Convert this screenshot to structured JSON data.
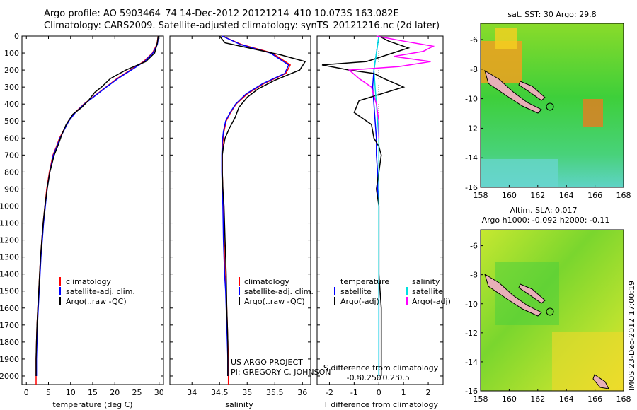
{
  "header": {
    "title_line1": "Argo profile: AO 5903464_74 14-Dec-2012 20121214_410 10.073S 163.082E",
    "title_line2": "Climatology: CARS2009. Satellite-adjusted climatology: synTS_20121216.nc (2d later)"
  },
  "credits": {
    "project": "US ARGO PROJECT",
    "pi": "PI: GREGORY C. JOHNSON",
    "stamp": "IMOS 23-Dec-2012 17:00:19"
  },
  "colors": {
    "climatology": "#ff0000",
    "satellite": "#0000ff",
    "argo": "#000000",
    "sat_salinity": "#00e0e0",
    "argo_salinity": "#ff00ff"
  },
  "chart_data": [
    {
      "id": "temperature",
      "type": "line",
      "xlabel": "temperature (deg C)",
      "xlim": [
        -1,
        31
      ],
      "xticks": [
        0,
        5,
        10,
        15,
        20,
        25,
        30
      ],
      "ylim": [
        2050,
        0
      ],
      "yticks": [
        0,
        100,
        200,
        300,
        400,
        500,
        600,
        700,
        800,
        900,
        1000,
        1100,
        1200,
        1300,
        1400,
        1500,
        1600,
        1700,
        1800,
        1900,
        2000
      ],
      "legend": [
        "climatology",
        "satellite-adj. clim.",
        "Argo(..raw -QC)"
      ],
      "series": [
        {
          "name": "climatology",
          "color": "#ff0000",
          "x": [
            29.8,
            29.5,
            28.5,
            26.5,
            23.5,
            20.5,
            18.0,
            15.5,
            13.0,
            11.0,
            9.5,
            8.5,
            7.5,
            6.8,
            6.0,
            5.2,
            4.6,
            4.2,
            3.8,
            3.5,
            3.2,
            3.0,
            2.8,
            2.6,
            2.4,
            2.3,
            2.2,
            2.2
          ],
          "y": [
            0,
            50,
            100,
            150,
            200,
            250,
            300,
            350,
            400,
            450,
            500,
            550,
            600,
            650,
            700,
            800,
            900,
            1000,
            1100,
            1200,
            1300,
            1400,
            1500,
            1600,
            1700,
            1800,
            1900,
            2050
          ]
        },
        {
          "name": "satellite-adj. clim.",
          "color": "#0000ff",
          "x": [
            29.9,
            29.6,
            28.6,
            26.7,
            23.7,
            20.7,
            18.1,
            15.6,
            13.1,
            11.1,
            9.6,
            8.6,
            7.6,
            6.9,
            6.1,
            5.3,
            4.7,
            4.3,
            3.9,
            3.6,
            3.3,
            3.1,
            2.9,
            2.7,
            2.5,
            2.4,
            2.3,
            2.3
          ],
          "y": [
            0,
            50,
            100,
            150,
            200,
            250,
            300,
            350,
            400,
            450,
            500,
            550,
            600,
            650,
            700,
            800,
            900,
            1000,
            1100,
            1200,
            1300,
            1400,
            1500,
            1600,
            1700,
            1800,
            1900,
            2000
          ]
        },
        {
          "name": "Argo(..raw -QC)",
          "color": "#000000",
          "x": [
            29.8,
            29.6,
            29.0,
            27.0,
            22.5,
            19.0,
            17.0,
            15.5,
            14.0,
            12.5,
            10.5,
            9.0,
            8.0,
            7.2,
            6.3,
            5.3,
            4.7,
            4.2,
            3.8,
            3.5,
            3.2,
            3.0,
            2.8,
            2.6,
            2.4,
            2.3,
            2.2,
            2.2
          ],
          "y": [
            0,
            40,
            100,
            150,
            200,
            250,
            300,
            330,
            380,
            420,
            460,
            520,
            580,
            640,
            700,
            800,
            900,
            1000,
            1100,
            1200,
            1300,
            1400,
            1500,
            1600,
            1700,
            1800,
            1900,
            2000
          ]
        }
      ]
    },
    {
      "id": "salinity",
      "type": "line",
      "xlabel": "salinity",
      "xlim": [
        33.6,
        36.15
      ],
      "xticks": [
        34,
        34.5,
        35,
        35.5,
        36
      ],
      "xticklabels": [
        "34",
        "34.5",
        "35",
        "35.5",
        "36"
      ],
      "ylim": [
        2050,
        0
      ],
      "legend": [
        "climatology",
        "satellite-adj. clim.",
        "Argo(..raw -QC)"
      ],
      "series": [
        {
          "name": "climatology",
          "color": "#ff0000",
          "x": [
            34.55,
            34.9,
            35.45,
            35.78,
            35.7,
            35.3,
            35.0,
            34.8,
            34.7,
            34.62,
            34.58,
            34.56,
            34.55,
            34.55,
            34.56,
            34.57,
            34.58,
            34.6,
            34.62,
            34.63,
            34.64,
            34.65,
            34.66,
            34.66
          ],
          "y": [
            0,
            50,
            100,
            170,
            220,
            280,
            340,
            400,
            450,
            500,
            560,
            620,
            700,
            800,
            900,
            1000,
            1200,
            1400,
            1500,
            1600,
            1700,
            1800,
            1900,
            2050
          ]
        },
        {
          "name": "satellite-adj. clim.",
          "color": "#0000ff",
          "x": [
            34.55,
            34.88,
            35.42,
            35.75,
            35.68,
            35.28,
            34.98,
            34.79,
            34.69,
            34.61,
            34.57,
            34.55,
            34.54,
            34.54,
            34.55,
            34.56,
            34.57,
            34.59,
            34.61,
            34.62,
            34.63,
            34.64,
            34.65,
            34.65
          ],
          "y": [
            0,
            50,
            100,
            170,
            220,
            280,
            340,
            400,
            450,
            500,
            560,
            620,
            700,
            800,
            900,
            1000,
            1200,
            1400,
            1500,
            1600,
            1700,
            1800,
            1900,
            2000
          ]
        },
        {
          "name": "Argo(..raw -QC)",
          "color": "#000000",
          "x": [
            34.5,
            34.6,
            35.6,
            36.05,
            35.95,
            35.5,
            35.2,
            35.0,
            34.85,
            34.78,
            34.68,
            34.6,
            34.57,
            34.55,
            34.55,
            34.56,
            34.58,
            34.6,
            34.62,
            34.63,
            34.64,
            34.65,
            34.65
          ],
          "y": [
            0,
            40,
            110,
            150,
            200,
            260,
            310,
            360,
            420,
            480,
            540,
            600,
            650,
            700,
            800,
            900,
            1000,
            1200,
            1400,
            1600,
            1700,
            1800,
            2000
          ]
        }
      ]
    },
    {
      "id": "differences",
      "type": "line",
      "xlabel": "T difference from climatology",
      "xlabel_top": "S difference from climatology",
      "xlim": [
        -2.5,
        2.6
      ],
      "xticks": [
        -2,
        -1,
        0,
        1,
        2
      ],
      "top_ticks": [
        -0.5,
        -0.25,
        0,
        0.25,
        0.5
      ],
      "top_ticklabels": [
        "-0.5",
        "-0.25",
        "0",
        "0.25",
        "0.5"
      ],
      "ylim": [
        2050,
        0
      ],
      "legend_temperature": {
        "heading": "temperature",
        "items": [
          "satellite",
          "Argo(-adj)"
        ]
      },
      "legend_salinity": {
        "heading": "salinity",
        "items": [
          "satellite",
          "Argo(-adj)"
        ]
      },
      "series": [
        {
          "name": "T satellite",
          "color": "#0000ff",
          "x": [
            0,
            -0.1,
            -0.2,
            -0.25,
            -0.2,
            -0.15,
            -0.1,
            -0.1,
            -0.05,
            -0.05,
            0,
            0,
            0,
            0,
            0,
            0
          ],
          "y": [
            0,
            100,
            200,
            300,
            400,
            500,
            600,
            700,
            800,
            900,
            1000,
            1200,
            1400,
            1600,
            1800,
            2000
          ]
        },
        {
          "name": "T Argo(-adj)",
          "color": "#000000",
          "x": [
            0,
            0.4,
            1.2,
            -0.5,
            -2.3,
            -1.2,
            -0.2,
            0.2,
            1.0,
            -0.8,
            -1.0,
            -0.3,
            -0.2,
            0,
            0.1,
            0,
            -0.1,
            0,
            0,
            0,
            0.1,
            0.1
          ],
          "y": [
            0,
            30,
            70,
            150,
            170,
            200,
            220,
            250,
            300,
            380,
            450,
            520,
            600,
            650,
            700,
            800,
            900,
            1000,
            1200,
            1400,
            1600,
            2000
          ]
        },
        {
          "name": "S satellite",
          "color": "#00e0e0",
          "x": [
            0,
            -0.1,
            -0.2,
            -0.15,
            -0.1,
            -0.05,
            0,
            0,
            0,
            0,
            0,
            0,
            0,
            0
          ],
          "y": [
            0,
            100,
            200,
            300,
            400,
            500,
            600,
            800,
            1000,
            1200,
            1400,
            1600,
            1800,
            2000
          ]
        },
        {
          "name": "S Argo(-adj)",
          "color": "#ff00ff",
          "x": [
            -0.1,
            1.0,
            2.2,
            1.8,
            0.6,
            2.1,
            0.8,
            -1.2,
            -0.8,
            -0.3,
            -0.1,
            0,
            0
          ],
          "y": [
            0,
            30,
            60,
            90,
            120,
            150,
            180,
            200,
            250,
            300,
            400,
            500,
            600
          ]
        }
      ]
    },
    {
      "id": "sst_map",
      "type": "heatmap",
      "title": "sat. SST: 30 Argo: 29.8",
      "xticks": [
        158,
        160,
        162,
        164,
        166,
        168
      ],
      "yticks": [
        -6,
        -8,
        -10,
        -12,
        -14,
        -16
      ],
      "marker": {
        "lon": 163.082,
        "lat": -10.073
      }
    },
    {
      "id": "sla_map",
      "type": "heatmap",
      "title_line1": "Altim. SLA: 0.017",
      "title_line2": "Argo h1000: -0.092 h2000: -0.11",
      "xticks": [
        158,
        160,
        162,
        164,
        166,
        168
      ],
      "yticks": [
        -6,
        -8,
        -10,
        -12,
        -14,
        -16
      ],
      "marker": {
        "lon": 163.082,
        "lat": -10.073
      }
    }
  ]
}
